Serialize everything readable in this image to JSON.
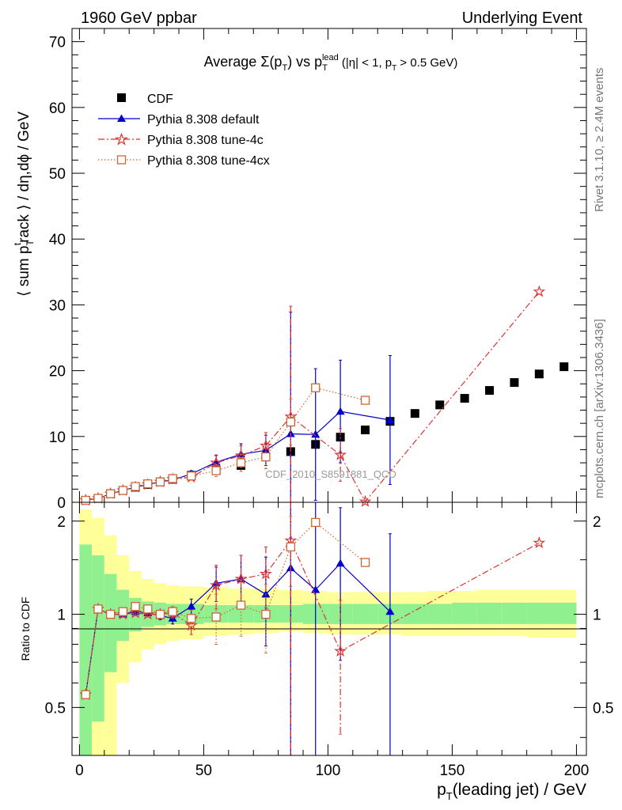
{
  "header": {
    "left": "1960 GeV ppbar",
    "right": "Underlying Event"
  },
  "side_labels": {
    "rivet": "Rivet 3.1.10, ≥ 2.4M events",
    "mcplots": "mcplots.cern.ch [arXiv:1306.3436]"
  },
  "watermark": "CDF_2010_S8591881_QCD",
  "chart_data": [
    {
      "type": "scatter",
      "title_parts": {
        "t1": "Average ",
        "t2": "Σ(p",
        "t3": "T",
        "t4": ") vs p",
        "t5": "T",
        "t6": "lead",
        "t7": " (|η| < 1, p",
        "t8": "T",
        "t9": " > 0.5 GeV)"
      },
      "ylabel_parts": {
        "y1": "⟨ sum p",
        "y2": "T",
        "y3": "t",
        "y4": "rack ⟩ / dη,dϕ / GeV"
      },
      "xlabel_parts": {
        "x1": "p",
        "x2": "T",
        "x3": "(leading jet) / GeV"
      },
      "xlim": [
        -3,
        204
      ],
      "ylim": [
        0,
        72
      ],
      "xticks": [
        "0",
        "50",
        "100",
        "150",
        "200"
      ],
      "yticks": [
        "0",
        "10",
        "20",
        "30",
        "40",
        "50",
        "60",
        "70"
      ],
      "legend_position": "top-left",
      "series": [
        {
          "name": "CDF",
          "color": "#000000",
          "marker": "square",
          "x": [
            2.5,
            7.5,
            12.5,
            17.5,
            22.5,
            27.5,
            32.5,
            37.5,
            45,
            55,
            65,
            75,
            85,
            95,
            105,
            115,
            125,
            135,
            145,
            155,
            165,
            175,
            185,
            195
          ],
          "y": [
            0.3,
            0.6,
            1.3,
            1.8,
            2.3,
            2.7,
            3.1,
            3.5,
            4.1,
            4.9,
            5.6,
            6.9,
            7.7,
            8.8,
            9.9,
            11.0,
            12.3,
            13.5,
            14.8,
            15.8,
            17.0,
            18.2,
            19.5,
            20.6
          ]
        },
        {
          "name": "Pythia 8.308 default",
          "color": "#0000cc",
          "marker": "triangle",
          "x": [
            2.5,
            7.5,
            12.5,
            17.5,
            22.5,
            27.5,
            32.5,
            37.5,
            45,
            55,
            65,
            75,
            85,
            95,
            105,
            125
          ],
          "y": [
            0.3,
            0.6,
            1.3,
            1.8,
            2.3,
            2.7,
            3.1,
            3.4,
            4.3,
            6.1,
            7.3,
            7.9,
            10.4,
            10.3,
            13.8,
            12.5
          ],
          "err": [
            0.05,
            0.05,
            0.1,
            0.1,
            0.1,
            0.15,
            0.2,
            0.3,
            0.5,
            1.0,
            1.6,
            2.3,
            18.5,
            10.0,
            7.8,
            9.8
          ]
        },
        {
          "name": "Pythia 8.308 tune-4c",
          "color": "#dd3333",
          "marker": "star",
          "x": [
            2.5,
            7.5,
            12.5,
            17.5,
            22.5,
            27.5,
            32.5,
            37.5,
            45,
            55,
            65,
            75,
            85,
            105,
            115,
            185
          ],
          "y": [
            0.3,
            0.6,
            1.3,
            1.8,
            2.3,
            2.7,
            3.1,
            3.5,
            3.8,
            6.0,
            7.1,
            8.6,
            13.0,
            7.2,
            0.1,
            32.0
          ],
          "err": [
            0.05,
            0.05,
            0.1,
            0.1,
            0.1,
            0.15,
            0.2,
            0.3,
            0.4,
            1.2,
            1.5,
            2.0,
            16.8,
            4.0,
            0.1,
            0.0
          ]
        },
        {
          "name": "Pythia 8.308 tune-4cx",
          "color": "#cc6633",
          "marker": "open-square",
          "x": [
            2.5,
            7.5,
            12.5,
            17.5,
            22.5,
            27.5,
            32.5,
            37.5,
            45,
            55,
            65,
            75,
            85,
            95,
            115
          ],
          "y": [
            0.3,
            0.6,
            1.3,
            1.8,
            2.4,
            2.8,
            3.1,
            3.6,
            4.0,
            4.8,
            6.0,
            6.9,
            12.2,
            17.4,
            15.5
          ],
          "err": [
            0.05,
            0.05,
            0.1,
            0.1,
            0.1,
            0.15,
            0.2,
            0.3,
            0.4,
            0.9,
            1.3,
            1.8,
            3.5,
            0.0,
            0.0
          ]
        }
      ]
    },
    {
      "type": "scatter",
      "ylabel": "Ratio to CDF",
      "xlim": [
        -3,
        204
      ],
      "ylim": [
        0.35,
        2.3
      ],
      "scale": "log",
      "yticks": [
        "0.5",
        "1",
        "2"
      ],
      "reference": 1,
      "bands": {
        "green": "#90f090",
        "yellow": "#ffff99",
        "edges": [
          0,
          5,
          10,
          15,
          20,
          25,
          30,
          35,
          40,
          50,
          60,
          70,
          80,
          90,
          100,
          110,
          120,
          130,
          140,
          150,
          160,
          170,
          180,
          190,
          200
        ],
        "green_lo": [
          0.35,
          0.45,
          0.65,
          0.82,
          0.88,
          0.91,
          0.92,
          0.93,
          0.93,
          0.94,
          0.94,
          0.94,
          0.94,
          0.93,
          0.93,
          0.93,
          0.93,
          0.93,
          0.93,
          0.93,
          0.93,
          0.93,
          0.93,
          0.93
        ],
        "green_hi": [
          1.68,
          1.55,
          1.35,
          1.2,
          1.13,
          1.1,
          1.09,
          1.08,
          1.08,
          1.07,
          1.07,
          1.07,
          1.07,
          1.08,
          1.08,
          1.08,
          1.08,
          1.08,
          1.08,
          1.09,
          1.09,
          1.09,
          1.09,
          1.09
        ],
        "yellow_lo": [
          0.35,
          0.35,
          0.35,
          0.6,
          0.7,
          0.77,
          0.8,
          0.82,
          0.83,
          0.85,
          0.86,
          0.87,
          0.88,
          0.87,
          0.86,
          0.86,
          0.86,
          0.85,
          0.85,
          0.85,
          0.85,
          0.85,
          0.84,
          0.84
        ],
        "yellow_hi": [
          2.18,
          2.05,
          1.8,
          1.55,
          1.38,
          1.3,
          1.26,
          1.24,
          1.23,
          1.22,
          1.21,
          1.21,
          1.2,
          1.19,
          1.18,
          1.18,
          1.18,
          1.18,
          1.19,
          1.19,
          1.2,
          1.2,
          1.2,
          1.2
        ]
      },
      "series": [
        {
          "name": "Pythia 8.308 default",
          "color": "#0000cc",
          "marker": "triangle",
          "x": [
            2.5,
            7.5,
            12.5,
            17.5,
            22.5,
            27.5,
            32.5,
            37.5,
            45,
            55,
            65,
            75,
            85,
            95,
            105,
            125
          ],
          "y": [
            0.55,
            1.04,
            1.0,
            1.0,
            1.02,
            1.01,
            0.99,
            0.97,
            1.06,
            1.26,
            1.3,
            1.16,
            1.41,
            1.2,
            1.46,
            1.02
          ],
          "err": [
            0.0,
            0.01,
            0.02,
            0.02,
            0.02,
            0.02,
            0.03,
            0.04,
            0.06,
            0.16,
            0.25,
            0.37,
            2.4,
            1.1,
            0.75,
            0.8
          ]
        },
        {
          "name": "Pythia 8.308 tune-4c",
          "color": "#dd3333",
          "marker": "star",
          "x": [
            2.5,
            7.5,
            12.5,
            17.5,
            22.5,
            27.5,
            32.5,
            37.5,
            45,
            55,
            65,
            75,
            85,
            105,
            185
          ],
          "y": [
            0.55,
            1.04,
            1.0,
            1.0,
            1.01,
            1.0,
            1.0,
            1.01,
            0.92,
            1.24,
            1.3,
            1.35,
            1.73,
            0.76,
            1.7
          ],
          "err": [
            0.0,
            0.01,
            0.02,
            0.02,
            0.02,
            0.02,
            0.03,
            0.04,
            0.06,
            0.2,
            0.25,
            0.3,
            2.2,
            0.35,
            0.0
          ]
        },
        {
          "name": "Pythia 8.308 tune-4cx",
          "color": "#cc6633",
          "marker": "open-square",
          "x": [
            2.5,
            7.5,
            12.5,
            17.5,
            22.5,
            27.5,
            32.5,
            37.5,
            45,
            55,
            65,
            75,
            85,
            95,
            115
          ],
          "y": [
            0.55,
            1.04,
            1.0,
            1.02,
            1.06,
            1.04,
            1.0,
            1.02,
            0.97,
            0.98,
            1.07,
            1.0,
            1.65,
            1.98,
            1.47
          ],
          "err": [
            0.0,
            0.01,
            0.02,
            0.02,
            0.02,
            0.03,
            0.03,
            0.04,
            0.06,
            0.18,
            0.22,
            0.25,
            0.42,
            0.0,
            0.0
          ]
        }
      ]
    }
  ]
}
